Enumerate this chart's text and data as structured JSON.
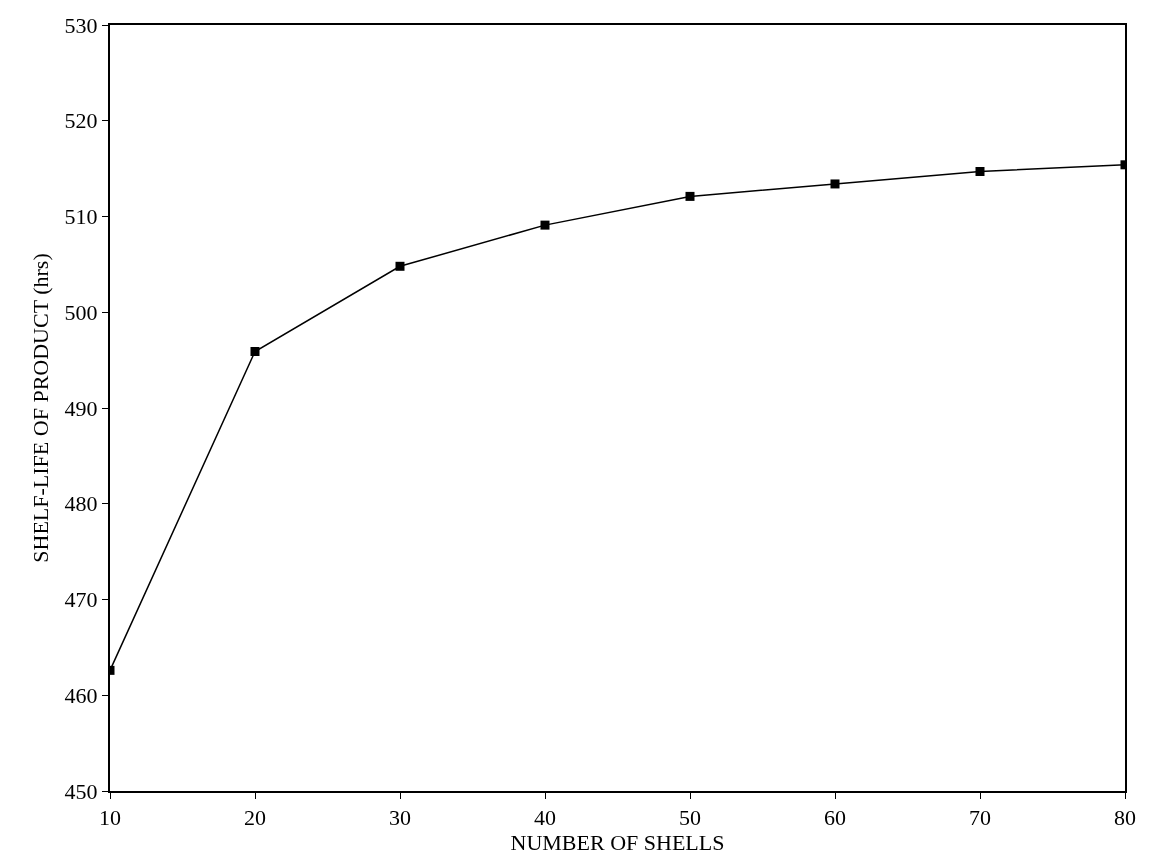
{
  "chart_data": {
    "type": "line",
    "xlabel": "NUMBER OF SHELLS",
    "ylabel": "SHELF-LIFE OF PRODUCT (hrs)",
    "x": [
      10,
      20,
      30,
      40,
      50,
      60,
      70,
      80
    ],
    "series": [
      {
        "color": "#000000",
        "values": [
          462.6,
          495.9,
          504.8,
          509.1,
          512.1,
          513.4,
          514.7,
          515.4
        ]
      }
    ],
    "xlim": [
      10,
      80
    ],
    "xticks": [
      10,
      20,
      30,
      40,
      50,
      60,
      70,
      80
    ],
    "ylim": [
      450,
      530
    ],
    "yticks": [
      450,
      460,
      470,
      480,
      490,
      500,
      510,
      520,
      530
    ],
    "marker": "square",
    "line_style": "solid"
  }
}
